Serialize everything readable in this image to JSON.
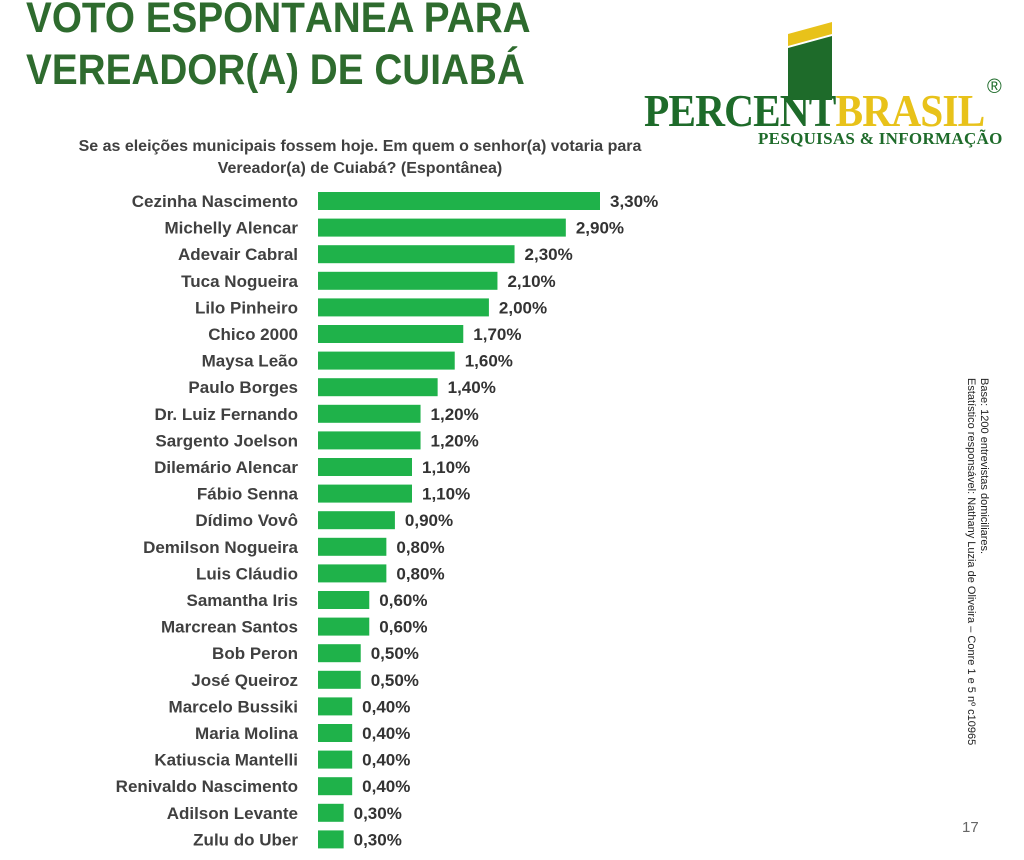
{
  "header": {
    "title_line1": "VOTO ESPONTÂNEA PARA",
    "title_line2": "VEREADOR(A) DE CUIABÁ"
  },
  "logo": {
    "word_part1": "PERCENT",
    "word_part2": "BRASIL",
    "registered": "®",
    "tagline": "PESQUISAS & INFORMAÇÃO",
    "colors": {
      "green": "#1e6b2a",
      "yellow": "#e8c21a"
    }
  },
  "question": {
    "line1": "Se as eleições municipais fossem hoje. Em quem o senhor(a) votaria para",
    "line2": "Vereador(a) de Cuiabá? (Espontânea)"
  },
  "side_note": {
    "line1": "Base: 1200 entrevistas domiciliares.",
    "line2": "Estatístico responsável: Nathany Luzia de Oliveira – Conre 1 e 5 nº c10965"
  },
  "page_number": "17",
  "chart_data": {
    "type": "bar",
    "orientation": "horizontal",
    "categories": [
      "Cezinha Nascimento",
      "Michelly Alencar",
      "Adevair Cabral",
      "Tuca Nogueira",
      "Lilo Pinheiro",
      "Chico 2000",
      "Maysa Leão",
      "Paulo Borges",
      "Dr. Luiz Fernando",
      "Sargento Joelson",
      "Dilemário Alencar",
      "Fábio Senna",
      "Dídimo Vovô",
      "Demilson Nogueira",
      "Luis Cláudio",
      "Samantha Iris",
      "Marcrean Santos",
      "Bob Peron",
      "José Queiroz",
      "Marcelo Bussiki",
      "Maria Molina",
      "Katiuscia Mantelli",
      "Renivaldo Nascimento",
      "Adilson Levante",
      "Zulu do Uber"
    ],
    "values": [
      3.3,
      2.9,
      2.3,
      2.1,
      2.0,
      1.7,
      1.6,
      1.4,
      1.2,
      1.2,
      1.1,
      1.1,
      0.9,
      0.8,
      0.8,
      0.6,
      0.6,
      0.5,
      0.5,
      0.4,
      0.4,
      0.4,
      0.4,
      0.3,
      0.3
    ],
    "value_labels": [
      "3,30%",
      "2,90%",
      "2,30%",
      "2,10%",
      "2,00%",
      "1,70%",
      "1,60%",
      "1,40%",
      "1,20%",
      "1,20%",
      "1,10%",
      "1,10%",
      "0,90%",
      "0,80%",
      "0,80%",
      "0,60%",
      "0,60%",
      "0,50%",
      "0,50%",
      "0,40%",
      "0,40%",
      "0,40%",
      "0,40%",
      "0,30%",
      "0,30%"
    ],
    "xlim": [
      0,
      3.3
    ],
    "bar_color": "#1fb24a",
    "grid": false,
    "legend": "none"
  }
}
